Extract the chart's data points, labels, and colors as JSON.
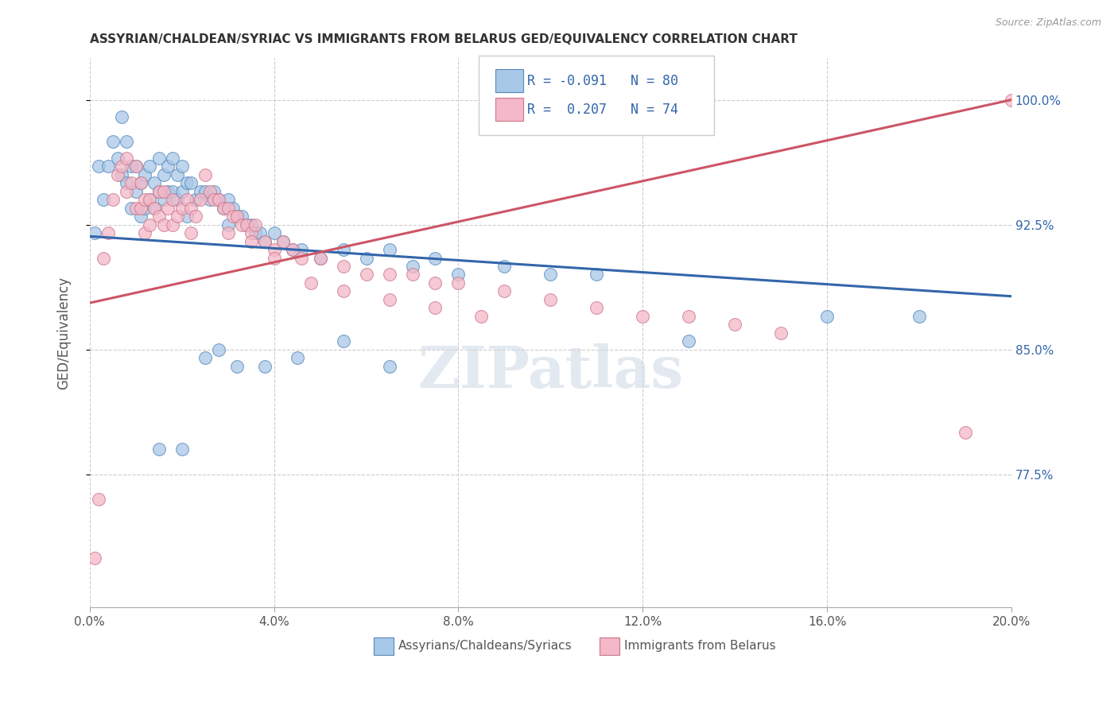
{
  "title": "ASSYRIAN/CHALDEAN/SYRIAC VS IMMIGRANTS FROM BELARUS GED/EQUIVALENCY CORRELATION CHART",
  "source": "Source: ZipAtlas.com",
  "ylabel": "GED/Equivalency",
  "xmin": 0.0,
  "xmax": 0.2,
  "ymin": 0.695,
  "ymax": 1.025,
  "yticks": [
    0.775,
    0.85,
    0.925,
    1.0
  ],
  "ytick_labels": [
    "77.5%",
    "85.0%",
    "92.5%",
    "100.0%"
  ],
  "xtick_vals": [
    0.0,
    0.04,
    0.08,
    0.12,
    0.16,
    0.2
  ],
  "xtick_labels": [
    "0.0%",
    "4.0%",
    "8.0%",
    "12.0%",
    "16.0%",
    "20.0%"
  ],
  "blue_color": "#a8c8e8",
  "pink_color": "#f4b8c8",
  "blue_edge_color": "#5588bb",
  "pink_edge_color": "#cc7788",
  "blue_line_color": "#3366aa",
  "pink_line_color": "#cc5566",
  "legend_text_color": "#3366aa",
  "watermark": "ZIPatlas",
  "blue_line_x0": 0.0,
  "blue_line_x1": 0.2,
  "blue_line_y0": 0.918,
  "blue_line_y1": 0.882,
  "pink_line_x0": 0.0,
  "pink_line_x1": 0.2,
  "pink_line_y0": 0.878,
  "pink_line_y1": 1.0,
  "blue_scatter_x": [
    0.001,
    0.002,
    0.003,
    0.004,
    0.005,
    0.006,
    0.007,
    0.007,
    0.008,
    0.008,
    0.009,
    0.009,
    0.01,
    0.01,
    0.011,
    0.011,
    0.012,
    0.012,
    0.013,
    0.013,
    0.014,
    0.014,
    0.015,
    0.015,
    0.016,
    0.016,
    0.017,
    0.017,
    0.018,
    0.018,
    0.019,
    0.019,
    0.02,
    0.02,
    0.021,
    0.021,
    0.022,
    0.023,
    0.024,
    0.025,
    0.026,
    0.027,
    0.028,
    0.029,
    0.03,
    0.03,
    0.031,
    0.032,
    0.033,
    0.034,
    0.035,
    0.036,
    0.037,
    0.038,
    0.04,
    0.042,
    0.044,
    0.046,
    0.05,
    0.055,
    0.06,
    0.065,
    0.07,
    0.075,
    0.08,
    0.09,
    0.1,
    0.11,
    0.13,
    0.16,
    0.015,
    0.02,
    0.025,
    0.028,
    0.032,
    0.038,
    0.045,
    0.055,
    0.065,
    0.18
  ],
  "blue_scatter_y": [
    0.92,
    0.96,
    0.94,
    0.96,
    0.975,
    0.965,
    0.99,
    0.955,
    0.975,
    0.95,
    0.96,
    0.935,
    0.96,
    0.945,
    0.95,
    0.93,
    0.955,
    0.935,
    0.96,
    0.94,
    0.95,
    0.935,
    0.965,
    0.945,
    0.955,
    0.94,
    0.96,
    0.945,
    0.965,
    0.945,
    0.955,
    0.94,
    0.96,
    0.945,
    0.95,
    0.93,
    0.95,
    0.94,
    0.945,
    0.945,
    0.94,
    0.945,
    0.94,
    0.935,
    0.94,
    0.925,
    0.935,
    0.93,
    0.93,
    0.925,
    0.925,
    0.92,
    0.92,
    0.915,
    0.92,
    0.915,
    0.91,
    0.91,
    0.905,
    0.91,
    0.905,
    0.91,
    0.9,
    0.905,
    0.895,
    0.9,
    0.895,
    0.895,
    0.855,
    0.87,
    0.79,
    0.79,
    0.845,
    0.85,
    0.84,
    0.84,
    0.845,
    0.855,
    0.84,
    0.87
  ],
  "pink_scatter_x": [
    0.001,
    0.002,
    0.003,
    0.004,
    0.005,
    0.006,
    0.007,
    0.008,
    0.008,
    0.009,
    0.01,
    0.01,
    0.011,
    0.011,
    0.012,
    0.012,
    0.013,
    0.013,
    0.014,
    0.015,
    0.015,
    0.016,
    0.016,
    0.017,
    0.018,
    0.018,
    0.019,
    0.02,
    0.021,
    0.022,
    0.022,
    0.023,
    0.024,
    0.025,
    0.026,
    0.027,
    0.028,
    0.029,
    0.03,
    0.031,
    0.032,
    0.033,
    0.034,
    0.035,
    0.036,
    0.038,
    0.04,
    0.042,
    0.044,
    0.046,
    0.05,
    0.055,
    0.06,
    0.065,
    0.07,
    0.075,
    0.08,
    0.09,
    0.1,
    0.11,
    0.12,
    0.13,
    0.14,
    0.15,
    0.03,
    0.035,
    0.04,
    0.048,
    0.055,
    0.065,
    0.075,
    0.085,
    0.19,
    0.2
  ],
  "pink_scatter_y": [
    0.725,
    0.76,
    0.905,
    0.92,
    0.94,
    0.955,
    0.96,
    0.965,
    0.945,
    0.95,
    0.96,
    0.935,
    0.95,
    0.935,
    0.94,
    0.92,
    0.94,
    0.925,
    0.935,
    0.945,
    0.93,
    0.945,
    0.925,
    0.935,
    0.94,
    0.925,
    0.93,
    0.935,
    0.94,
    0.935,
    0.92,
    0.93,
    0.94,
    0.955,
    0.945,
    0.94,
    0.94,
    0.935,
    0.935,
    0.93,
    0.93,
    0.925,
    0.925,
    0.92,
    0.925,
    0.915,
    0.91,
    0.915,
    0.91,
    0.905,
    0.905,
    0.9,
    0.895,
    0.895,
    0.895,
    0.89,
    0.89,
    0.885,
    0.88,
    0.875,
    0.87,
    0.87,
    0.865,
    0.86,
    0.92,
    0.915,
    0.905,
    0.89,
    0.885,
    0.88,
    0.875,
    0.87,
    0.8,
    1.0
  ]
}
